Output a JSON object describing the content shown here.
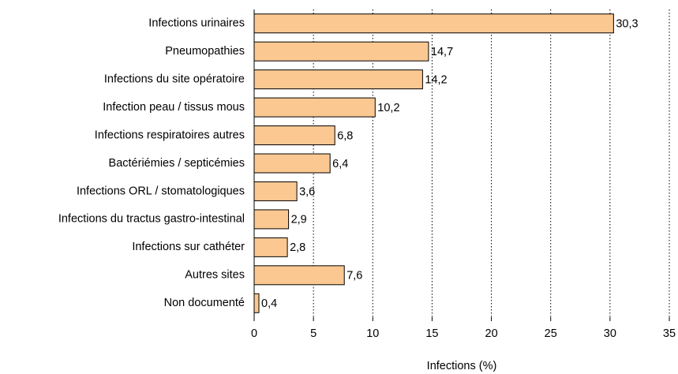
{
  "chart_data": {
    "type": "bar",
    "orientation": "horizontal",
    "x_label": "Infections (%)",
    "categories": [
      "Infections urinaires",
      "Pneumopathies",
      "Infections du site opératoire",
      "Infection  peau / tissus mous",
      "Infections respiratoires autres",
      "Bactériémies / septicémies",
      "Infections ORL / stomatologiques",
      "Infections du tractus gastro-intestinal",
      "Infections sur cathéter",
      "Autres sites",
      "Non documenté"
    ],
    "values": [
      30.3,
      14.7,
      14.2,
      10.2,
      6.8,
      6.4,
      3.6,
      2.9,
      2.8,
      7.6,
      0.4
    ],
    "value_labels": [
      "30,3",
      "14,7",
      "14,2",
      "10,2",
      "6,8",
      "6,4",
      "3,6",
      "2,9",
      "2,8",
      "7,6",
      "0,4"
    ],
    "color": "#fcc892",
    "xlim": [
      0,
      35
    ],
    "xticks": [
      0,
      5,
      10,
      15,
      20,
      25,
      30,
      35
    ],
    "grid": true
  }
}
